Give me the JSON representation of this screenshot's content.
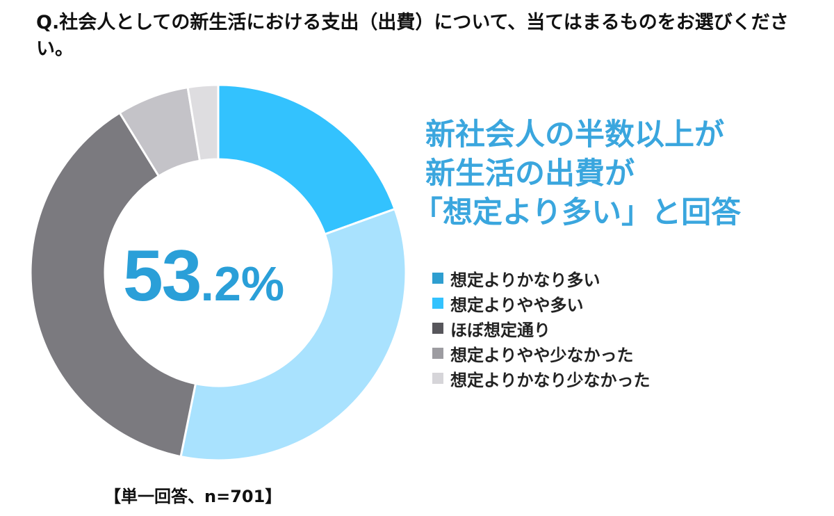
{
  "question": "Q.社会人としての新生活における支出（出費）について、当てはまるものをお選びください。",
  "headline": {
    "line1": "新社会人の半数以上が",
    "line2": "新生活の出費が",
    "line3": "「想定より多い」と回答"
  },
  "center_label": {
    "int": "53",
    "dec": ".2%"
  },
  "footnote": "【単一回答、n=701】",
  "colors": {
    "much_more": "#33c2fe",
    "slightly_more": "#a9e2fe",
    "as_expected": "#7b7a7f",
    "slightly_less": "#c4c3c8",
    "much_less": "#dedde0",
    "center_text": "#2a9fd8",
    "headline": "#3aa6de"
  },
  "chart_data": {
    "type": "pie",
    "donut": true,
    "start": "top",
    "direction": "clockwise",
    "legend_position": "right",
    "categories": [
      "想定よりかなり多い",
      "想定よりやや多い",
      "ほぼ想定通り",
      "想定よりやや少なかった",
      "想定よりかなり少なかった"
    ],
    "values": [
      19.5,
      33.7,
      38.0,
      6.2,
      2.6
    ],
    "colors": [
      "#33c2fe",
      "#a9e2fe",
      "#7b7a7f",
      "#c4c3c8",
      "#dedde0"
    ],
    "legend_swatch_colors": [
      "#2e9ed0",
      "#33c2fe",
      "#57565b",
      "#9d9ca1",
      "#d6d5d9"
    ]
  }
}
